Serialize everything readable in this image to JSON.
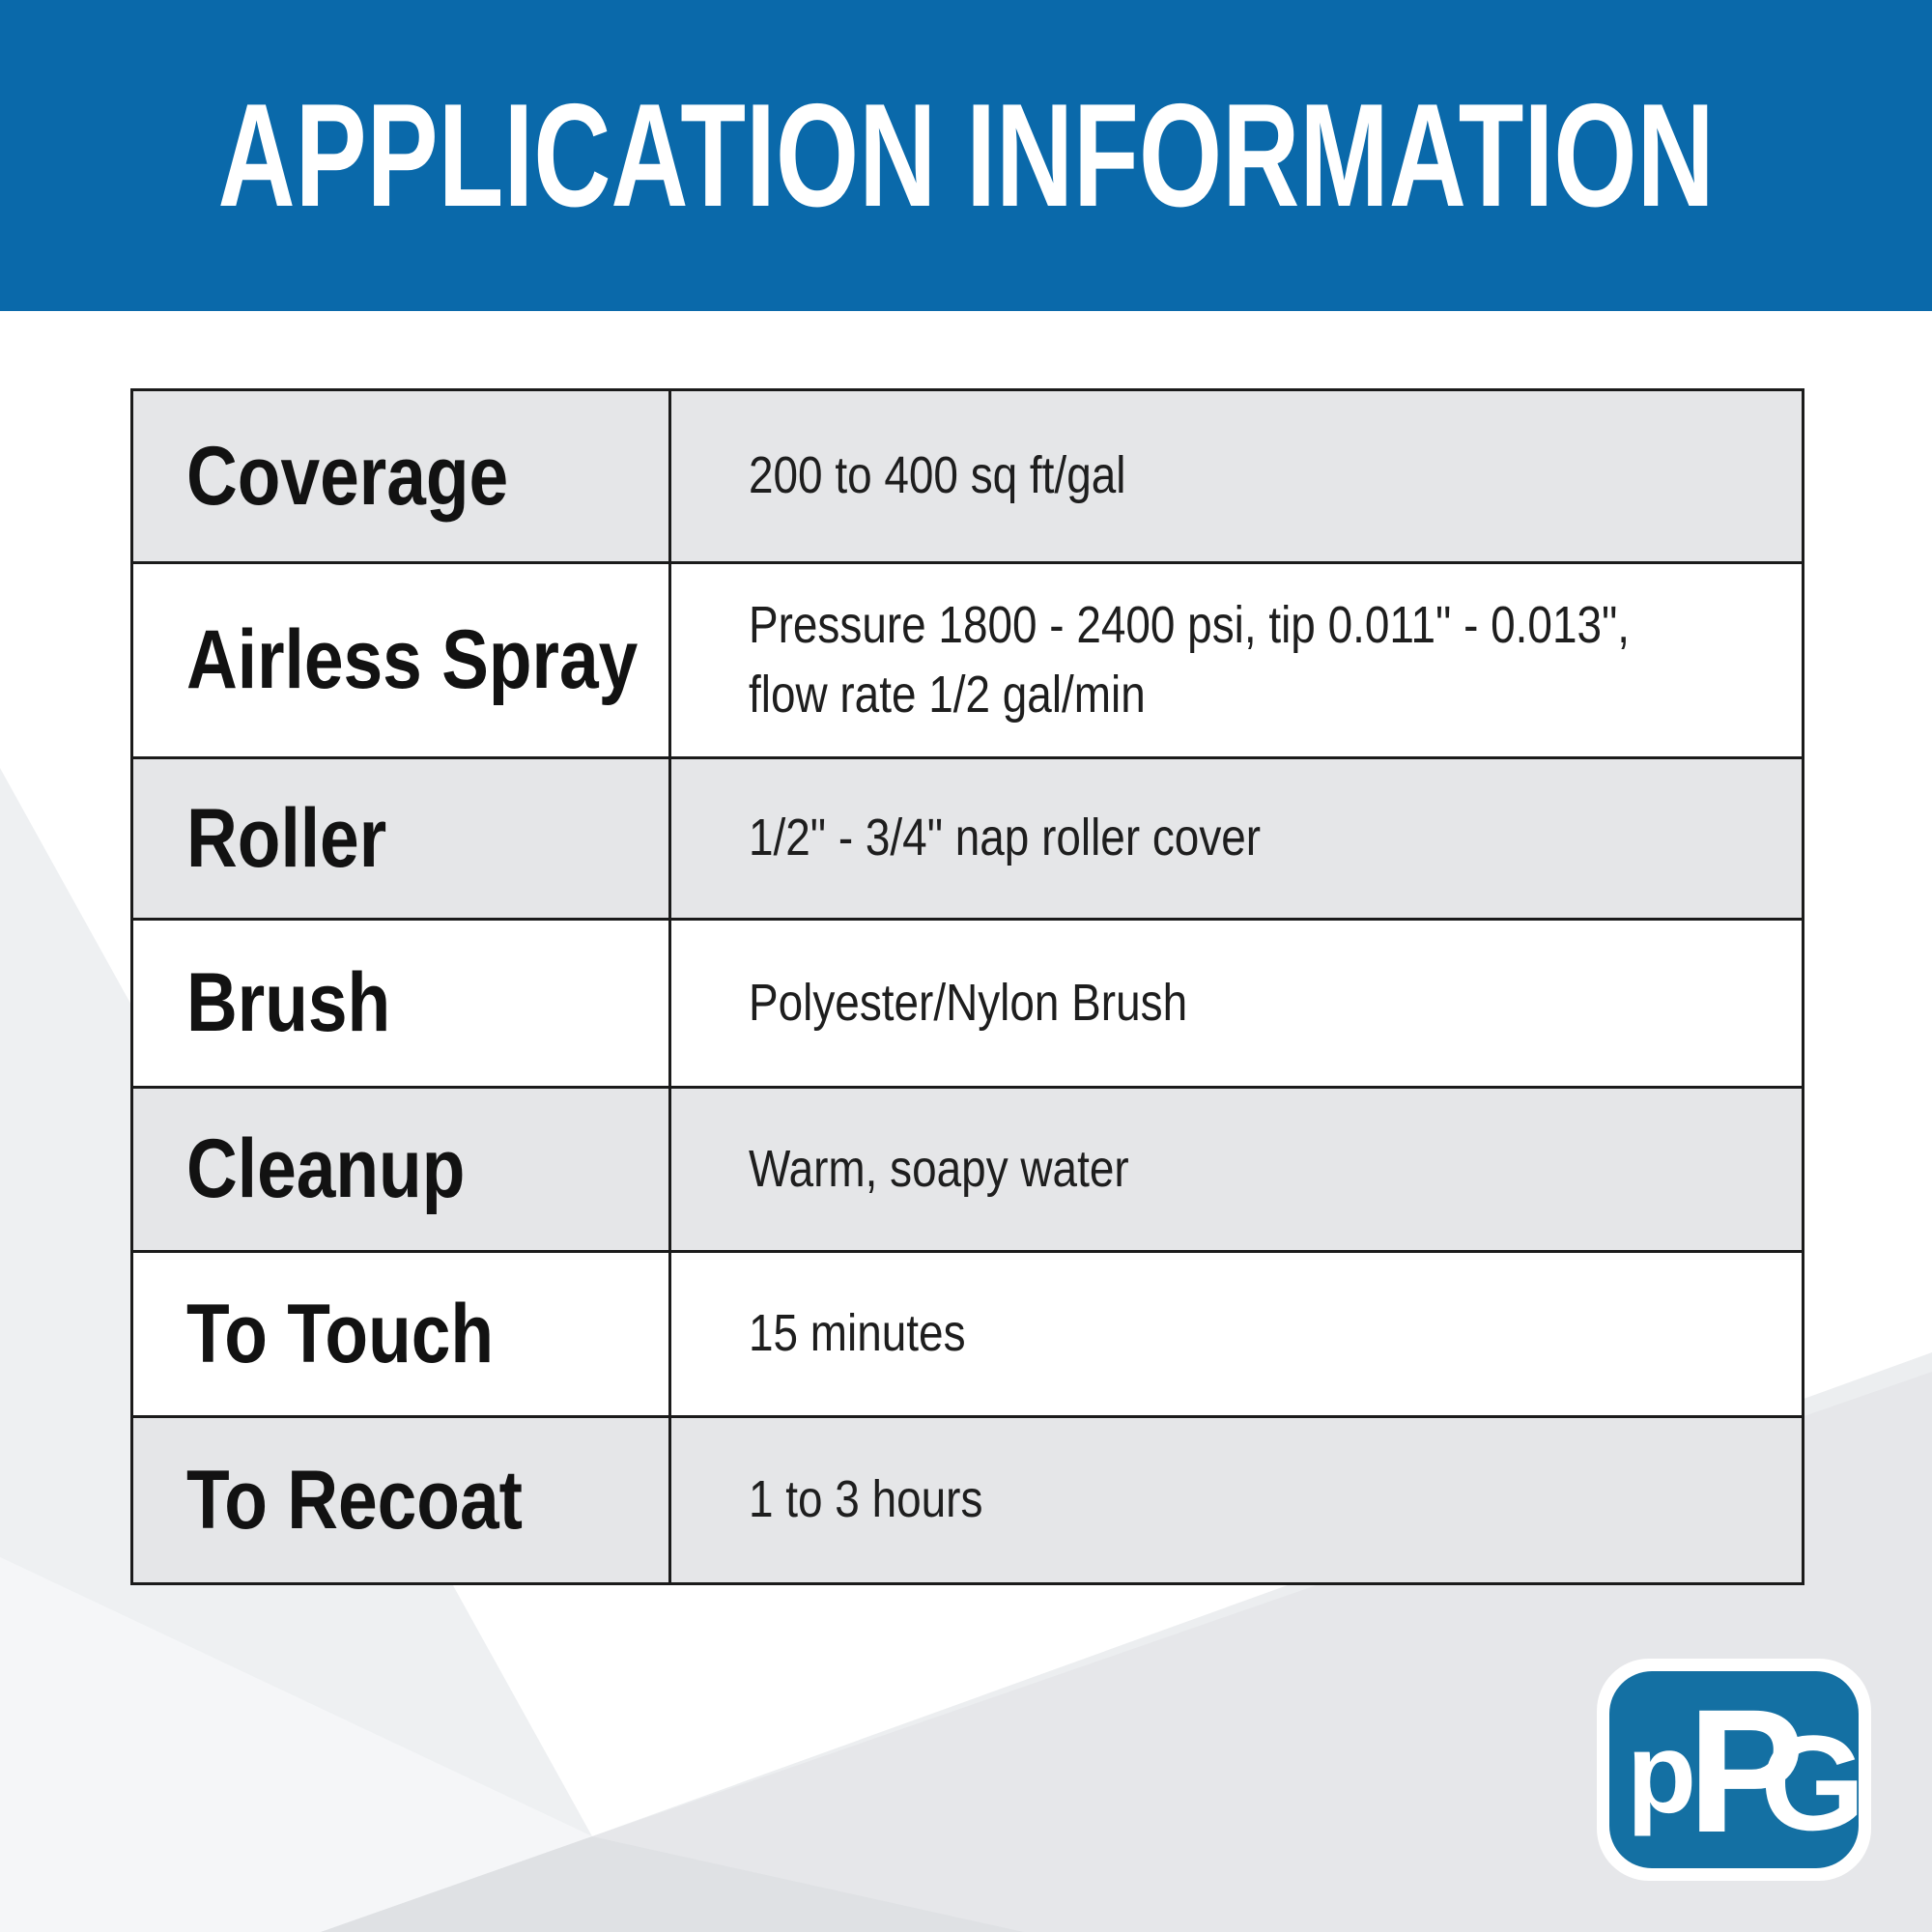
{
  "header": {
    "title": "APPLICATION INFORMATION"
  },
  "table": {
    "rows": [
      {
        "label": "Coverage",
        "value": "200 to 400 sq ft/gal"
      },
      {
        "label": "Airless Spray",
        "value": "Pressure 1800 - 2400 psi, tip 0.011\" - 0.013\",\nflow rate 1/2 gal/min"
      },
      {
        "label": "Roller",
        "value": "1/2\" - 3/4\" nap roller cover"
      },
      {
        "label": "Brush",
        "value": "Polyester/Nylon Brush"
      },
      {
        "label": "Cleanup",
        "value": "Warm, soapy water"
      },
      {
        "label": "To Touch",
        "value": "15 minutes"
      },
      {
        "label": "To Recoat",
        "value": "1 to 3 hours"
      }
    ]
  },
  "logo": {
    "text": "PPG",
    "letters": [
      "p",
      "P",
      "G"
    ]
  },
  "colors": {
    "banner_blue": "#0a69aa",
    "logo_blue": "#1470a3",
    "row_shade": "#e5e6e8",
    "border": "#1b1b1b"
  }
}
